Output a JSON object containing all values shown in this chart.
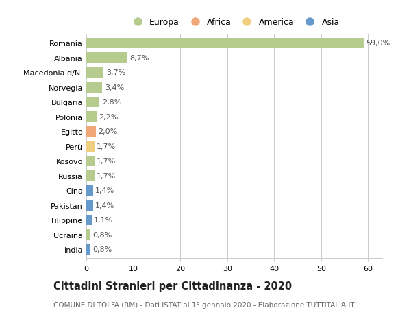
{
  "categories": [
    "Romania",
    "Albania",
    "Macedonia d/N.",
    "Norvegia",
    "Bulgaria",
    "Polonia",
    "Egitto",
    "Perù",
    "Kosovo",
    "Russia",
    "Cina",
    "Pakistan",
    "Filippine",
    "Ucraina",
    "India"
  ],
  "values": [
    59.0,
    8.7,
    3.7,
    3.4,
    2.8,
    2.2,
    2.0,
    1.7,
    1.7,
    1.7,
    1.4,
    1.4,
    1.1,
    0.8,
    0.8
  ],
  "labels": [
    "59,0%",
    "8,7%",
    "3,7%",
    "3,4%",
    "2,8%",
    "2,2%",
    "2,0%",
    "1,7%",
    "1,7%",
    "1,7%",
    "1,4%",
    "1,4%",
    "1,1%",
    "0,8%",
    "0,8%"
  ],
  "continents": [
    "Europa",
    "Europa",
    "Europa",
    "Europa",
    "Europa",
    "Europa",
    "Africa",
    "America",
    "Europa",
    "Europa",
    "Asia",
    "Asia",
    "Asia",
    "Europa",
    "Asia"
  ],
  "continent_colors": {
    "Europa": "#b5cc8e",
    "Africa": "#f0a878",
    "America": "#f0d080",
    "Asia": "#6699cc"
  },
  "legend_order": [
    "Europa",
    "Africa",
    "America",
    "Asia"
  ],
  "bar_height": 0.72,
  "xlim": [
    0,
    63
  ],
  "xticks": [
    0,
    10,
    20,
    30,
    40,
    50,
    60
  ],
  "title": "Cittadini Stranieri per Cittadinanza - 2020",
  "subtitle": "COMUNE DI TOLFA (RM) - Dati ISTAT al 1° gennaio 2020 - Elaborazione TUTTITALIA.IT",
  "bg_color": "#ffffff",
  "plot_bg_color": "#ffffff",
  "grid_color": "#cccccc",
  "label_fontsize": 8,
  "tick_fontsize": 8,
  "title_fontsize": 10.5,
  "subtitle_fontsize": 7.5,
  "label_color": "#555555"
}
